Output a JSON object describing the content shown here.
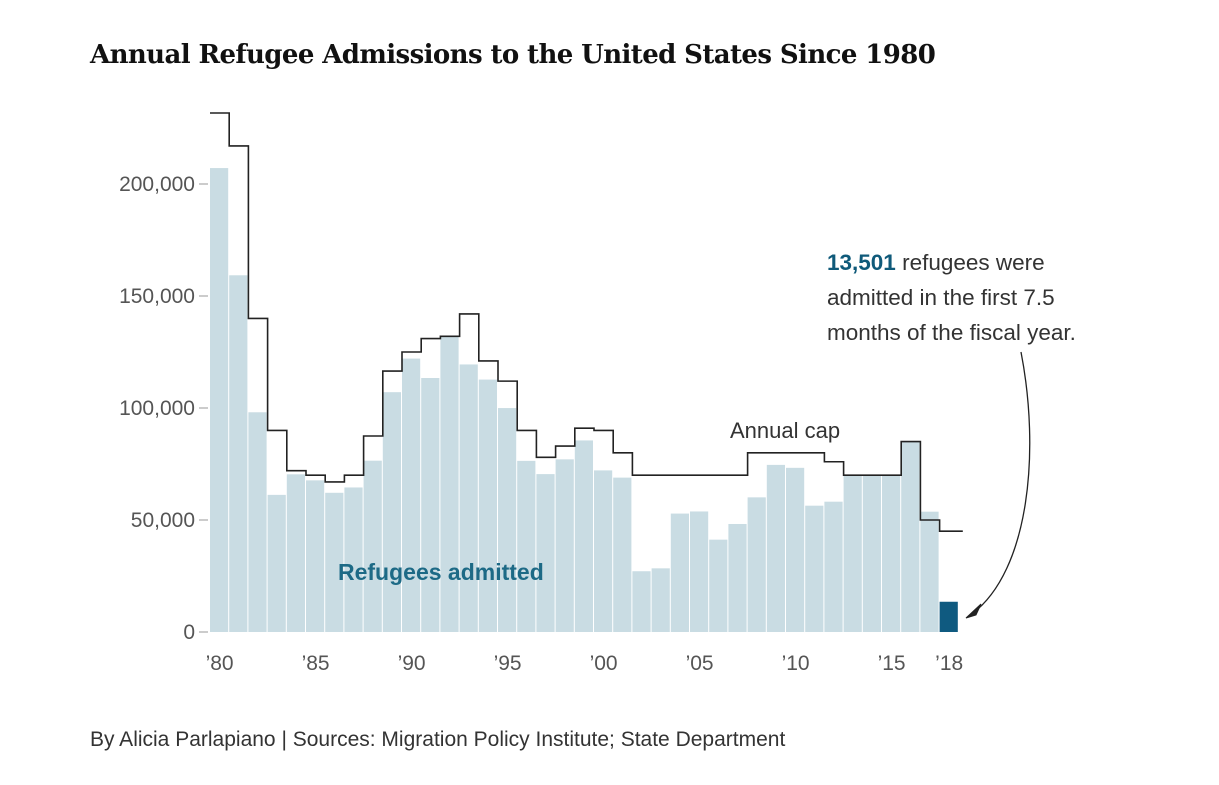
{
  "chart_data": {
    "type": "bar",
    "title": "Annual Refugee Admissions to the United States Since 1980",
    "x": [
      1980,
      1981,
      1982,
      1983,
      1984,
      1985,
      1986,
      1987,
      1988,
      1989,
      1990,
      1991,
      1992,
      1993,
      1994,
      1995,
      1996,
      1997,
      1998,
      1999,
      2000,
      2001,
      2002,
      2003,
      2004,
      2005,
      2006,
      2007,
      2008,
      2009,
      2010,
      2011,
      2012,
      2013,
      2014,
      2015,
      2016,
      2017,
      2018
    ],
    "x_tick_labels": [
      {
        "year": 1980,
        "label": "’80"
      },
      {
        "year": 1985,
        "label": "’85"
      },
      {
        "year": 1990,
        "label": "’90"
      },
      {
        "year": 1995,
        "label": "’95"
      },
      {
        "year": 2000,
        "label": "’00"
      },
      {
        "year": 2005,
        "label": "’05"
      },
      {
        "year": 2010,
        "label": "’10"
      },
      {
        "year": 2015,
        "label": "’15"
      },
      {
        "year": 2018,
        "label": "’18"
      }
    ],
    "y_ticks": [
      0,
      50000,
      100000,
      150000,
      200000
    ],
    "y_tick_labels": [
      "0",
      "50,000",
      "100,000",
      "150,000",
      "200,000"
    ],
    "ylim": [
      0,
      235000
    ],
    "grid": false,
    "series": [
      {
        "name": "Refugees admitted",
        "kind": "bar",
        "color": "#c9dce3",
        "highlight_color": "#0f5a80",
        "highlight_year": 2018,
        "values": [
          207116,
          159252,
          98096,
          61218,
          70393,
          67704,
          62146,
          64528,
          76483,
          107070,
          122066,
          113389,
          132173,
          119448,
          112682,
          99974,
          76403,
          70488,
          77080,
          85525,
          72143,
          68920,
          27131,
          28422,
          52868,
          53813,
          41223,
          48218,
          60107,
          74602,
          73293,
          56384,
          58179,
          69909,
          69975,
          69920,
          84989,
          53716,
          13501
        ]
      },
      {
        "name": "Annual cap",
        "kind": "step-line",
        "color": "#222222",
        "values": [
          231700,
          217000,
          140000,
          90000,
          72000,
          70000,
          67000,
          70000,
          87500,
          116500,
          125000,
          131000,
          132000,
          142000,
          121000,
          112000,
          90000,
          78000,
          83000,
          91000,
          90000,
          80000,
          70000,
          70000,
          70000,
          70000,
          70000,
          70000,
          80000,
          80000,
          80000,
          80000,
          76000,
          70000,
          70000,
          70000,
          85000,
          50000,
          45000
        ]
      }
    ],
    "annotation": {
      "number": "13,501",
      "text_line1": " refugees were",
      "text_line2": "admitted in the first 7.5",
      "text_line3": "months of the fiscal year."
    }
  },
  "footer": "By Alicia Parlapiano | Sources: Migration Policy Institute; State Department"
}
